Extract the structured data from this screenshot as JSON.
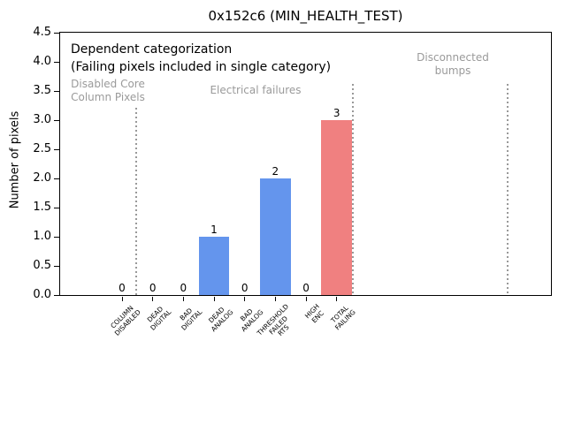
{
  "chart_data": {
    "type": "bar",
    "title": "0x152c6 (MIN_HEALTH_TEST)",
    "xlabel": "",
    "ylabel": "Number of pixels",
    "ylim": [
      0,
      4.5
    ],
    "ytick_labels": [
      "0.0",
      "0.5",
      "1.0",
      "1.5",
      "2.0",
      "2.5",
      "3.0",
      "3.5",
      "4.0",
      "4.5"
    ],
    "grid": false,
    "legend": null,
    "categories": [
      "COLUMN\nDISABLED",
      "DEAD\nDIGITAL",
      "BAD\nDIGITAL",
      "DEAD\nANALOG",
      "BAD\nANALOG",
      "THRESHOLD\nFAILED\nRTS",
      "HIGH\nENC",
      "TOTAL\nFAILING"
    ],
    "values": [
      0,
      0,
      0,
      1,
      0,
      2,
      0,
      3
    ],
    "bar_value_labels": [
      "0",
      "0",
      "0",
      "1",
      "0",
      "2",
      "0",
      "3"
    ],
    "bar_colors": [
      "#6495ED",
      "#6495ED",
      "#6495ED",
      "#6495ED",
      "#6495ED",
      "#6495ED",
      "#6495ED",
      "#F08080"
    ],
    "annotations": {
      "dependent_line1": "Dependent categorization",
      "dependent_line2": "(Failing pixels included in single category)",
      "sections": [
        {
          "label": "Disabled Core\nColumn Pixels"
        },
        {
          "label": "Electrical failures"
        },
        {
          "label": "Disconnected\nbumps"
        }
      ]
    }
  },
  "colors": {
    "background": "#ffffff",
    "axis": "#000000",
    "bar_blue": "#6495ED",
    "bar_red": "#F08080",
    "gray_text": "#9a9a9a",
    "separator_dots": "#999999"
  }
}
